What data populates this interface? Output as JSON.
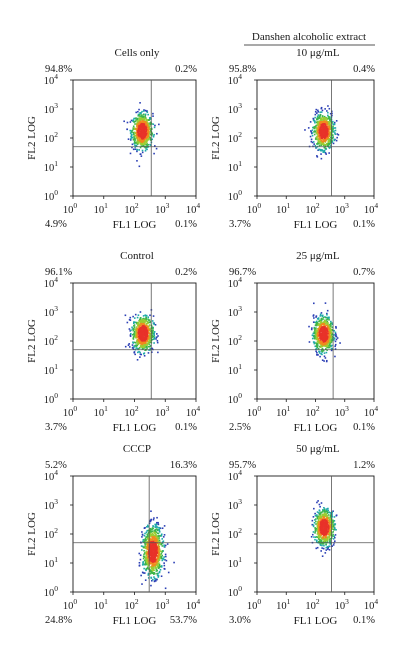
{
  "figure": {
    "column_header": "Danshen alcoholic extract"
  },
  "chart_data": [
    {
      "type": "scatter",
      "title": "Cells only",
      "xlabel": "FL1 LOG",
      "ylabel": "FL2 LOG",
      "xscale": "log",
      "yscale": "log",
      "xlim": [
        1,
        10000
      ],
      "ylim": [
        1,
        10000
      ],
      "xticks": [
        "10^0",
        "10^1",
        "10^2",
        "10^3",
        "10^4"
      ],
      "yticks": [
        "10^0",
        "10^1",
        "10^2",
        "10^3",
        "10^4"
      ],
      "quadrant_gate": {
        "x": 350,
        "y": 50
      },
      "quadrants": {
        "upper_left": "94.8%",
        "upper_right": "0.2%",
        "lower_left": "4.9%",
        "lower_right": "0.1%"
      },
      "population": {
        "center": [
          180,
          170
        ],
        "spread_log": [
          0.17,
          0.3
        ],
        "n_points": 700
      }
    },
    {
      "type": "scatter",
      "title": "10 μg/mL",
      "xlabel": "FL1 LOG",
      "ylabel": "FL2 LOG",
      "xscale": "log",
      "yscale": "log",
      "xlim": [
        1,
        10000
      ],
      "ylim": [
        1,
        10000
      ],
      "xticks": [
        "10^0",
        "10^1",
        "10^2",
        "10^3",
        "10^4"
      ],
      "yticks": [
        "10^0",
        "10^1",
        "10^2",
        "10^3",
        "10^4"
      ],
      "quadrant_gate": {
        "x": 350,
        "y": 50
      },
      "quadrants": {
        "upper_left": "95.8%",
        "upper_right": "0.4%",
        "lower_left": "3.7%",
        "lower_right": "0.1%"
      },
      "population": {
        "center": [
          190,
          170
        ],
        "spread_log": [
          0.17,
          0.3
        ],
        "n_points": 700
      }
    },
    {
      "type": "scatter",
      "title": "Control",
      "xlabel": "FL1 LOG",
      "ylabel": "FL2 LOG",
      "xscale": "log",
      "yscale": "log",
      "xlim": [
        1,
        10000
      ],
      "ylim": [
        1,
        10000
      ],
      "xticks": [
        "10^0",
        "10^1",
        "10^2",
        "10^3",
        "10^4"
      ],
      "yticks": [
        "10^0",
        "10^1",
        "10^2",
        "10^3",
        "10^4"
      ],
      "quadrant_gate": {
        "x": 350,
        "y": 50
      },
      "quadrants": {
        "upper_left": "96.1%",
        "upper_right": "0.2%",
        "lower_left": "3.7%",
        "lower_right": "0.1%"
      },
      "population": {
        "center": [
          190,
          180
        ],
        "spread_log": [
          0.17,
          0.3
        ],
        "n_points": 700
      }
    },
    {
      "type": "scatter",
      "title": "25 μg/mL",
      "xlabel": "FL1 LOG",
      "ylabel": "FL2 LOG",
      "xscale": "log",
      "yscale": "log",
      "xlim": [
        1,
        10000
      ],
      "ylim": [
        1,
        10000
      ],
      "xticks": [
        "10^0",
        "10^1",
        "10^2",
        "10^3",
        "10^4"
      ],
      "yticks": [
        "10^0",
        "10^1",
        "10^2",
        "10^3",
        "10^4"
      ],
      "quadrant_gate": {
        "x": 400,
        "y": 50
      },
      "quadrants": {
        "upper_left": "96.7%",
        "upper_right": "0.7%",
        "lower_left": "2.5%",
        "lower_right": "0.1%"
      },
      "population": {
        "center": [
          190,
          170
        ],
        "spread_log": [
          0.17,
          0.3
        ],
        "n_points": 700
      }
    },
    {
      "type": "scatter",
      "title": "CCCP",
      "xlabel": "FL1 LOG",
      "ylabel": "FL2 LOG",
      "xscale": "log",
      "yscale": "log",
      "xlim": [
        1,
        10000
      ],
      "ylim": [
        1,
        10000
      ],
      "xticks": [
        "10^0",
        "10^1",
        "10^2",
        "10^3",
        "10^4"
      ],
      "yticks": [
        "10^0",
        "10^1",
        "10^2",
        "10^3",
        "10^4"
      ],
      "quadrant_gate": {
        "x": 300,
        "y": 50
      },
      "quadrants": {
        "upper_left": "5.2%",
        "upper_right": "16.3%",
        "lower_left": "24.8%",
        "lower_right": "53.7%"
      },
      "population": {
        "center": [
          400,
          25
        ],
        "spread_log": [
          0.16,
          0.42
        ],
        "n_points": 900
      }
    },
    {
      "type": "scatter",
      "title": "50 μg/mL",
      "xlabel": "FL1 LOG",
      "ylabel": "FL2 LOG",
      "xscale": "log",
      "yscale": "log",
      "xlim": [
        1,
        10000
      ],
      "ylim": [
        1,
        10000
      ],
      "xticks": [
        "10^0",
        "10^1",
        "10^2",
        "10^3",
        "10^4"
      ],
      "yticks": [
        "10^0",
        "10^1",
        "10^2",
        "10^3",
        "10^4"
      ],
      "quadrant_gate": {
        "x": 350,
        "y": 50
      },
      "quadrants": {
        "upper_left": "95.7%",
        "upper_right": "1.2%",
        "lower_left": "3.0%",
        "lower_right": "0.1%"
      },
      "population": {
        "center": [
          200,
          170
        ],
        "spread_log": [
          0.17,
          0.3
        ],
        "n_points": 700
      }
    }
  ]
}
